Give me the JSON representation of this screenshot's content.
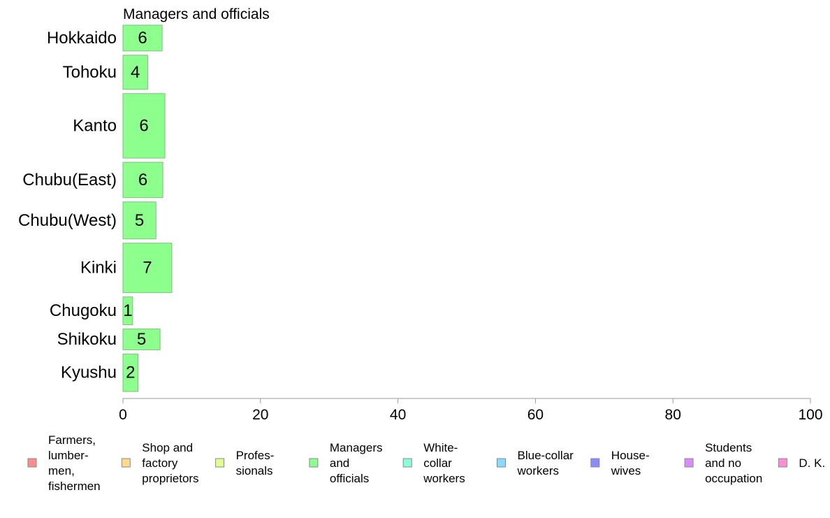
{
  "chart_data": {
    "type": "bar",
    "orientation": "horizontal",
    "title": "Managers and officials",
    "categories": [
      "Hokkaido",
      "Tohoku",
      "Kanto",
      "Chubu(East)",
      "Chubu(West)",
      "Kinki",
      "Chugoku",
      "Shikoku",
      "Kyushu"
    ],
    "series": [
      {
        "name": "Managers and officials",
        "values": [
          5.7,
          3.6,
          6.1,
          5.8,
          4.8,
          7.1,
          1.4,
          5.4,
          2.2
        ]
      }
    ],
    "data_labels": [
      "6",
      "4",
      "6",
      "6",
      "5",
      "7",
      "1",
      "5",
      "2"
    ],
    "category_weights": [
      0.62,
      0.82,
      1.55,
      0.85,
      0.89,
      1.19,
      0.67,
      0.5,
      0.9
    ],
    "xlim": [
      0,
      100
    ],
    "xticks": [
      "0",
      "20",
      "40",
      "60",
      "80",
      "100"
    ],
    "grid": false,
    "bar_color": "#8cff8c",
    "bar_stroke": "#7dbf7d",
    "legend_position": "bottom",
    "legend": [
      {
        "label": "Farmers, lumber- men, fishermen",
        "lines": [
          "Farmers,",
          "lumber-",
          "men,",
          "fishermen"
        ],
        "color": "#ff8c8c"
      },
      {
        "label": "Shop and factory proprietors",
        "lines": [
          "Shop and",
          "factory",
          "proprietors"
        ],
        "color": "#ffd98c"
      },
      {
        "label": "Profes- sionals",
        "lines": [
          "Profes-",
          "sionals"
        ],
        "color": "#e1ff8c"
      },
      {
        "label": "Managers and officials",
        "lines": [
          "Managers",
          "and",
          "officials"
        ],
        "color": "#8cff8c"
      },
      {
        "label": "White- collar workers",
        "lines": [
          "White-",
          "collar",
          "workers"
        ],
        "color": "#8cffd9"
      },
      {
        "label": "Blue-collar workers",
        "lines": [
          "Blue-collar",
          "workers"
        ],
        "color": "#8cd9ff"
      },
      {
        "label": "House- wives",
        "lines": [
          "House-",
          "wives"
        ],
        "color": "#8c8cff"
      },
      {
        "label": "Students and no occupation",
        "lines": [
          "Students",
          "and no",
          "occupation"
        ],
        "color": "#d98cff"
      },
      {
        "label": "D. K.",
        "lines": [
          "D. K."
        ],
        "color": "#ff8cd9"
      }
    ]
  }
}
